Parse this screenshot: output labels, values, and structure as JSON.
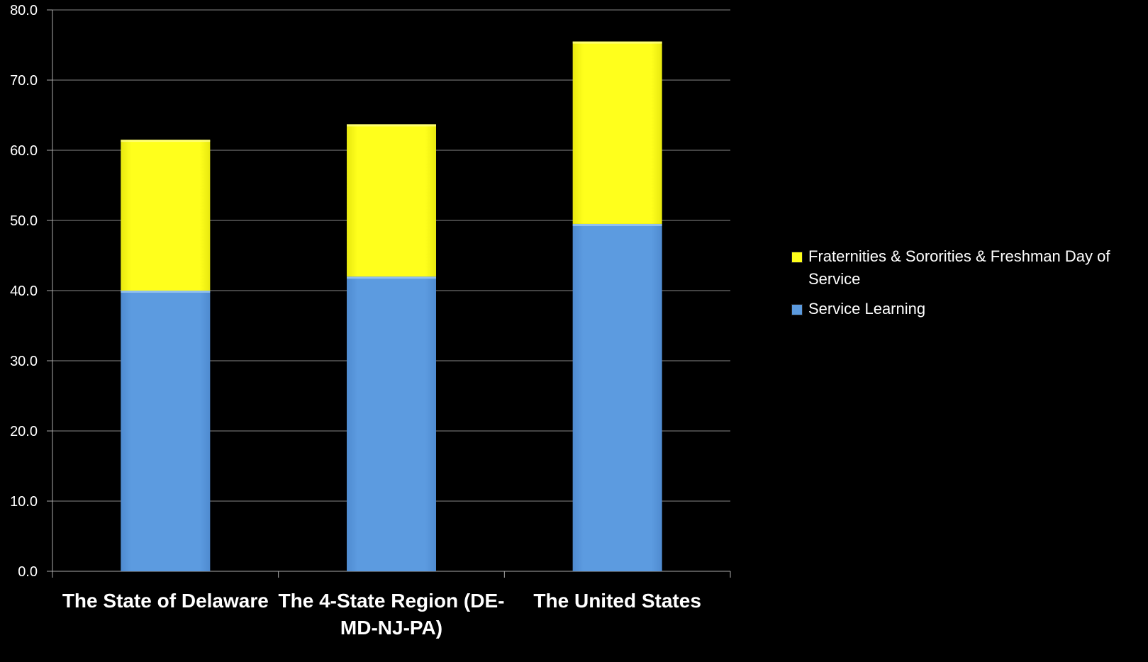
{
  "chart_data": {
    "type": "bar",
    "stacked": true,
    "categories": [
      "The State of Delaware",
      "The 4-State Region (DE-MD-NJ-PA)",
      "The United States"
    ],
    "category_label_lines": [
      [
        "The State of Delaware"
      ],
      [
        "The 4-State Region (DE-",
        "MD-NJ-PA)"
      ],
      [
        "The United States"
      ]
    ],
    "series": [
      {
        "name": "Service Learning",
        "color": "#5b9ade",
        "values": [
          40.0,
          42.0,
          49.5
        ]
      },
      {
        "name": "Fraternities & Sororities & Freshman Day of Service",
        "color": "#ffff1a",
        "values": [
          21.5,
          21.7,
          26.0
        ]
      }
    ],
    "ylim": [
      0,
      80
    ],
    "yticks": [
      "0.0",
      "10.0",
      "20.0",
      "30.0",
      "40.0",
      "50.0",
      "60.0",
      "70.0",
      "80.0"
    ],
    "grid": true,
    "legend_position": "right",
    "title": "",
    "xlabel": "",
    "ylabel": "",
    "colors": {
      "background": "#000000",
      "gridline": "#888888",
      "axis": "#aaaaaa",
      "text": "#ffffff"
    }
  }
}
